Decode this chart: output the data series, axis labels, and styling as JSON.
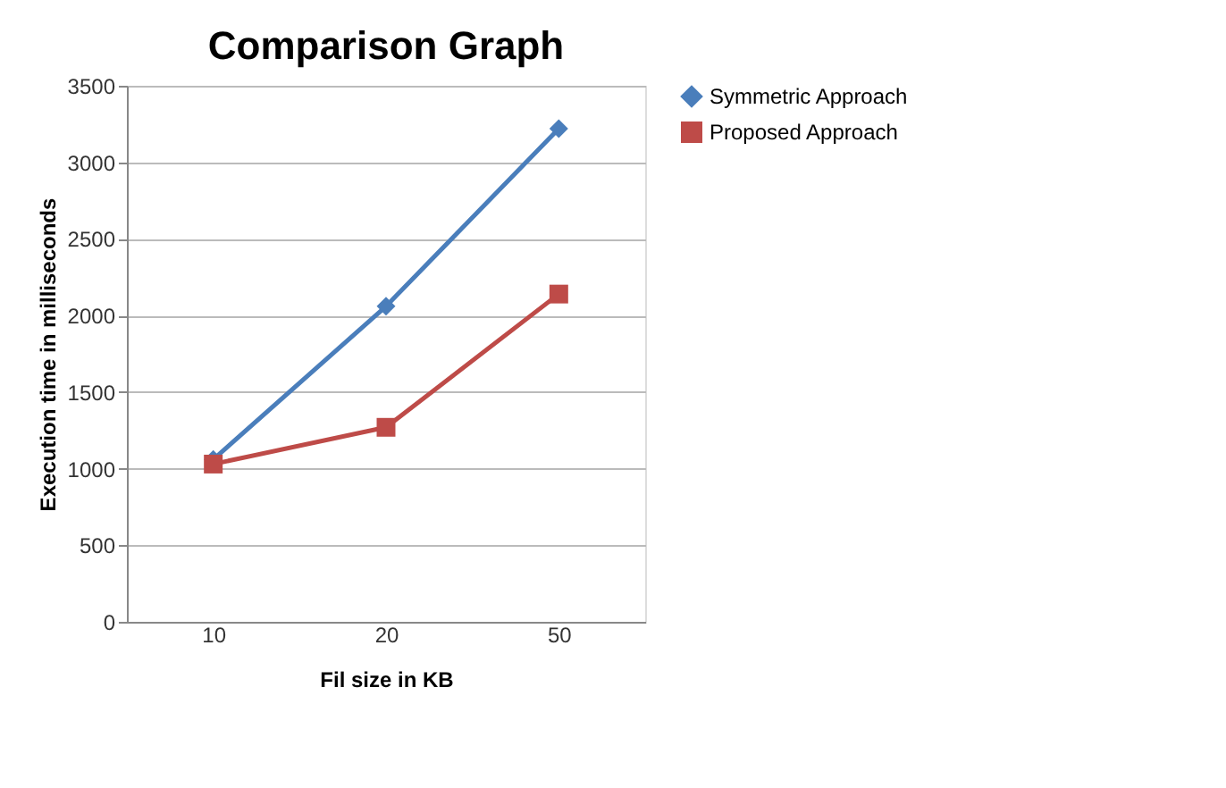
{
  "chart_data": {
    "type": "line",
    "title": "Comparison Graph",
    "xlabel": "Fil size  in KB",
    "ylabel": "Execution time in milliseconds",
    "categories": [
      "10",
      "20",
      "50"
    ],
    "series": [
      {
        "name": "Symmetric Approach",
        "color": "#4a7ebb",
        "values": [
          1060,
          2060,
          3220
        ],
        "marker": "diamond"
      },
      {
        "name": "Proposed Approach",
        "color": "#be4b48",
        "values": [
          1030,
          1270,
          2140
        ],
        "marker": "square"
      }
    ],
    "ylim": [
      0,
      3500
    ],
    "yticks": [
      0,
      500,
      1000,
      1500,
      2000,
      2500,
      3000,
      3500
    ],
    "grid": "y",
    "legend": "right"
  }
}
